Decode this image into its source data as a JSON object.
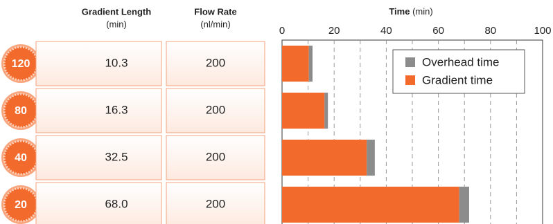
{
  "table": {
    "columns": [
      {
        "name": "Gradient Length",
        "unit": "(min)"
      },
      {
        "name": "Flow Rate",
        "unit": "(nl/min)"
      }
    ],
    "rows": [
      [
        "10.3",
        "200"
      ],
      [
        "16.3",
        "200"
      ],
      [
        "32.5",
        "200"
      ],
      [
        "68.0",
        "200"
      ]
    ]
  },
  "chart_data": {
    "type": "bar",
    "orientation": "horizontal",
    "stacked": true,
    "xlabel": "Time",
    "xunit": "(min)",
    "categories": [
      "120",
      "80",
      "40",
      "20"
    ],
    "series": [
      {
        "name": "Gradient time",
        "color": "#f26a2c",
        "values": [
          10.3,
          16.3,
          32.5,
          68.0
        ]
      },
      {
        "name": "Overhead time",
        "color": "#8c8c8c",
        "values": [
          1.4,
          1.3,
          3.1,
          3.8
        ]
      }
    ],
    "xlim": [
      0,
      100
    ],
    "xticks": [
      0,
      20,
      40,
      60,
      80,
      100
    ],
    "xminor_ticks": [
      10,
      30,
      50,
      70,
      90
    ],
    "grid": true,
    "legend": "upper right"
  }
}
